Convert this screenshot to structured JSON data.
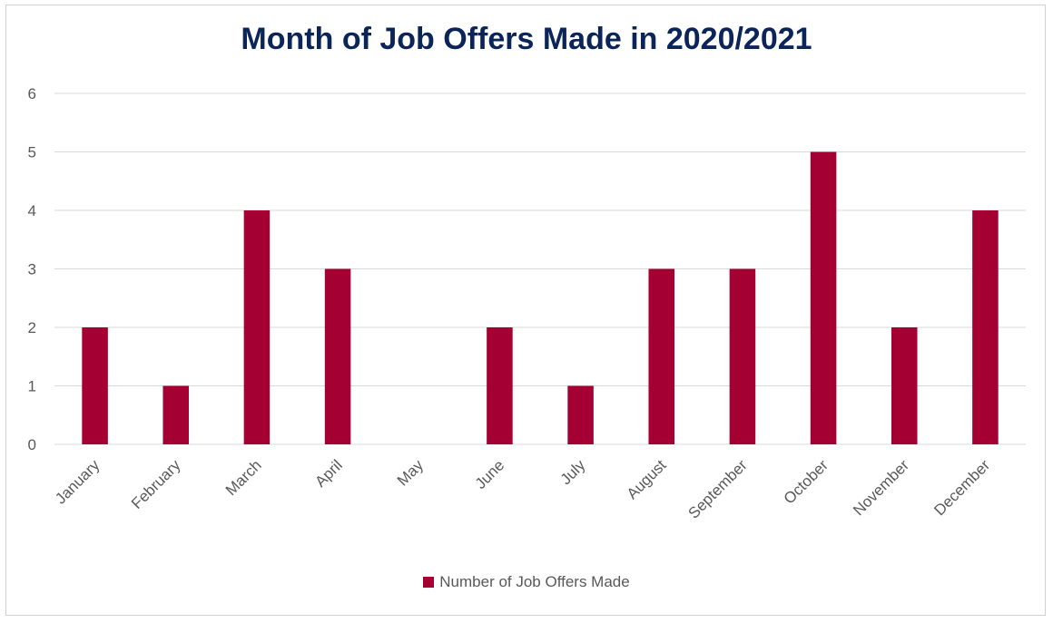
{
  "chart_data": {
    "type": "bar",
    "title": "Month of Job Offers Made in 2020/2021",
    "categories": [
      "January",
      "February",
      "March",
      "April",
      "May",
      "June",
      "July",
      "August",
      "September",
      "October",
      "November",
      "December"
    ],
    "series": [
      {
        "name": "Number of Job Offers Made",
        "values": [
          2,
          1,
          4,
          3,
          0,
          2,
          1,
          3,
          3,
          5,
          2,
          4
        ],
        "color": "#a50034"
      }
    ],
    "ylim": [
      0,
      6
    ],
    "yticks": [
      0,
      1,
      2,
      3,
      4,
      5,
      6
    ],
    "xlabel": "",
    "ylabel": "",
    "grid": true,
    "legend_position": "bottom"
  }
}
